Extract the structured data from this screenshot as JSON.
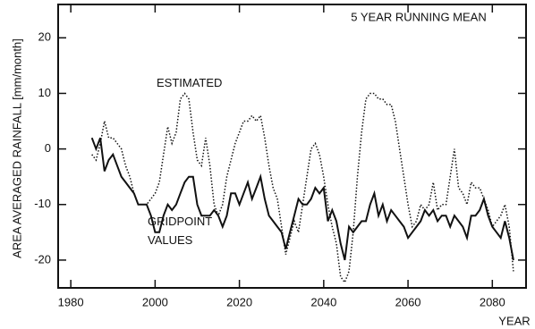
{
  "chart_data": {
    "type": "line",
    "title": "5 YEAR RUNNING MEAN",
    "y_label": "AREA AVERAGED RAINFALL [mm/month]",
    "x_label": "YEAR",
    "x": [
      1985,
      1986,
      1987,
      1988,
      1989,
      1990,
      1991,
      1992,
      1993,
      1994,
      1995,
      1996,
      1997,
      1998,
      1999,
      2000,
      2001,
      2002,
      2003,
      2004,
      2005,
      2006,
      2007,
      2008,
      2009,
      2010,
      2011,
      2012,
      2013,
      2014,
      2015,
      2016,
      2017,
      2018,
      2019,
      2020,
      2021,
      2022,
      2023,
      2024,
      2025,
      2026,
      2027,
      2028,
      2029,
      2030,
      2031,
      2032,
      2033,
      2034,
      2035,
      2036,
      2037,
      2038,
      2039,
      2040,
      2041,
      2042,
      2043,
      2044,
      2045,
      2046,
      2047,
      2048,
      2049,
      2050,
      2051,
      2052,
      2053,
      2054,
      2055,
      2056,
      2057,
      2058,
      2059,
      2060,
      2061,
      2062,
      2063,
      2064,
      2065,
      2066,
      2067,
      2068,
      2069,
      2070,
      2071,
      2072,
      2073,
      2074,
      2075,
      2076,
      2077,
      2078,
      2079,
      2080,
      2081,
      2082,
      2083,
      2084,
      2085
    ],
    "series": [
      {
        "name": "ESTIMATED",
        "color": "#111111",
        "dash": "dotted",
        "values": [
          -1,
          -2,
          1,
          5,
          2,
          2,
          1,
          0,
          -3,
          -5,
          -8,
          -10,
          -10,
          -10,
          -9,
          -8,
          -6,
          -1,
          4,
          1,
          3,
          9,
          10,
          9,
          3,
          -2,
          -3,
          2,
          -3,
          -10,
          -12,
          -10,
          -5,
          -2,
          1,
          3,
          5,
          5,
          6,
          5,
          6,
          2,
          -3,
          -7,
          -9,
          -14,
          -19,
          -16,
          -13,
          -15,
          -10,
          -5,
          0,
          1,
          -1,
          -5,
          -10,
          -14,
          -17,
          -23,
          -24,
          -22,
          -15,
          -5,
          3,
          9,
          10,
          10,
          9,
          9,
          8,
          8,
          5,
          0,
          -5,
          -10,
          -14,
          -13,
          -10,
          -11,
          -10,
          -6,
          -11,
          -10,
          -10,
          -5,
          0,
          -7,
          -8,
          -10,
          -6,
          -7,
          -7,
          -9,
          -11,
          -14,
          -13,
          -12,
          -10,
          -14,
          -22
        ]
      },
      {
        "name": "GRIDPOINT VALUES",
        "color": "#111111",
        "dash": "solid",
        "values": [
          2,
          0,
          2,
          -4,
          -2,
          -1,
          -3,
          -5,
          -6,
          -7,
          -8,
          -10,
          -10,
          -10,
          -12,
          -15,
          -15,
          -12,
          -10,
          -11,
          -10,
          -8,
          -6,
          -5,
          -5,
          -10,
          -12,
          -12,
          -12,
          -11,
          -12,
          -14,
          -12,
          -8,
          -8,
          -10,
          -8,
          -6,
          -9,
          -7,
          -5,
          -9,
          -12,
          -13,
          -14,
          -15,
          -18,
          -15,
          -12,
          -9,
          -10,
          -10,
          -9,
          -7,
          -8,
          -7,
          -13,
          -11,
          -13,
          -17,
          -20,
          -14,
          -15,
          -14,
          -13,
          -13,
          -10,
          -8,
          -12,
          -10,
          -13,
          -11,
          -12,
          -13,
          -14,
          -16,
          -15,
          -14,
          -13,
          -11,
          -12,
          -11,
          -13,
          -12,
          -12,
          -14,
          -12,
          -13,
          -14,
          -16,
          -12,
          -12,
          -11,
          -9,
          -12,
          -14,
          -15,
          -16,
          -13,
          -16,
          -20
        ]
      }
    ],
    "xlim": [
      1977,
      2088
    ],
    "ylim": [
      -25,
      26
    ],
    "xticks": [
      1980,
      2000,
      2020,
      2040,
      2060,
      2080
    ],
    "yticks": [
      -20,
      -10,
      0,
      10,
      20
    ]
  }
}
